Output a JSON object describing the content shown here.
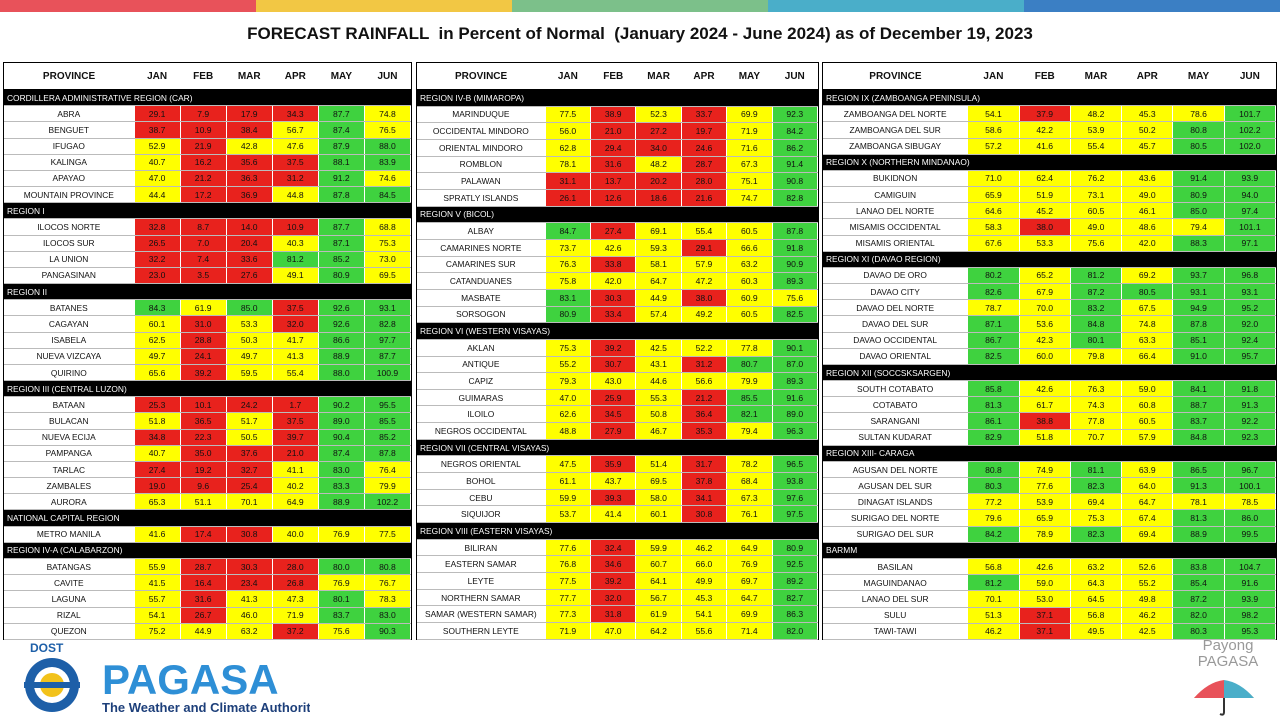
{
  "title": "FORECAST RAINFALL  in Percent of Normal  (January 2024 - June 2024) as of December 19, 2023",
  "tables": [
    {
      "columns": [
        "PROVINCE",
        "JAN",
        "FEB",
        "MAR",
        "APR",
        "MAY",
        "JUN"
      ],
      "groups": [
        {
          "region": "CORDILLERA ADMINISTRATIVE REGION (CAR)",
          "rows": [
            [
              "ABRA",
              "29.1",
              "7.9",
              "17.9",
              "34.3",
              "87.7",
              "74.8"
            ],
            [
              "BENGUET",
              "38.7",
              "10.9",
              "38.4",
              "56.7",
              "87.4",
              "76.5"
            ],
            [
              "IFUGAO",
              "52.9",
              "21.9",
              "42.8",
              "47.6",
              "87.9",
              "88.0"
            ],
            [
              "KALINGA",
              "40.7",
              "16.2",
              "35.6",
              "37.5",
              "88.1",
              "83.9"
            ],
            [
              "APAYAO",
              "47.0",
              "21.2",
              "36.3",
              "31.2",
              "91.2",
              "74.6"
            ],
            [
              "MOUNTAIN PROVINCE",
              "44.4",
              "17.2",
              "36.9",
              "44.8",
              "87.8",
              "84.5"
            ]
          ]
        },
        {
          "region": "REGION I",
          "rows": [
            [
              "ILOCOS NORTE",
              "32.8",
              "8.7",
              "14.0",
              "10.9",
              "87.7",
              "68.8"
            ],
            [
              "ILOCOS SUR",
              "26.5",
              "7.0",
              "20.4",
              "40.3",
              "87.1",
              "75.3"
            ],
            [
              "LA UNION",
              "32.2",
              "7.4",
              "33.6",
              "81.2",
              "85.2",
              "73.0"
            ],
            [
              "PANGASINAN",
              "23.0",
              "3.5",
              "27.6",
              "49.1",
              "80.9",
              "69.5"
            ]
          ]
        },
        {
          "region": "REGION II",
          "rows": [
            [
              "BATANES",
              "84.3",
              "61.9",
              "85.0",
              "37.5",
              "92.6",
              "93.1"
            ],
            [
              "CAGAYAN",
              "60.1",
              "31.0",
              "53.3",
              "32.0",
              "92.6",
              "82.8"
            ],
            [
              "ISABELA",
              "62.5",
              "28.8",
              "50.3",
              "41.7",
              "86.6",
              "97.7"
            ],
            [
              "NUEVA VIZCAYA",
              "49.7",
              "24.1",
              "49.7",
              "41.3",
              "88.9",
              "87.7"
            ],
            [
              "QUIRINO",
              "65.6",
              "39.2",
              "59.5",
              "55.4",
              "88.0",
              "100.9"
            ]
          ]
        },
        {
          "region": "REGION III (CENTRAL LUZON)",
          "rows": [
            [
              "BATAAN",
              "25.3",
              "10.1",
              "24.2",
              "1.7",
              "90.2",
              "95.5"
            ],
            [
              "BULACAN",
              "51.8",
              "36.5",
              "51.7",
              "37.5",
              "89.0",
              "85.5"
            ],
            [
              "NUEVA ECIJA",
              "34.8",
              "22.3",
              "50.5",
              "39.7",
              "90.4",
              "85.2"
            ],
            [
              "PAMPANGA",
              "40.7",
              "35.0",
              "37.6",
              "21.0",
              "87.4",
              "87.8"
            ],
            [
              "TARLAC",
              "27.4",
              "19.2",
              "32.7",
              "41.1",
              "83.0",
              "76.4"
            ],
            [
              "ZAMBALES",
              "19.0",
              "9.6",
              "25.4",
              "40.2",
              "83.3",
              "79.9"
            ],
            [
              "AURORA",
              "65.3",
              "51.1",
              "70.1",
              "64.9",
              "88.9",
              "102.2"
            ]
          ]
        },
        {
          "region": "NATIONAL CAPITAL REGION",
          "rows": [
            [
              "METRO MANILA",
              "41.6",
              "17.4",
              "30.8",
              "40.0",
              "76.9",
              "77.5"
            ]
          ]
        },
        {
          "region": "REGION IV-A (CALABARZON)",
          "rows": [
            [
              "BATANGAS",
              "55.9",
              "28.7",
              "30.3",
              "28.0",
              "80.0",
              "80.8"
            ],
            [
              "CAVITE",
              "41.5",
              "16.4",
              "23.4",
              "26.8",
              "76.9",
              "76.7"
            ],
            [
              "LAGUNA",
              "55.7",
              "31.6",
              "41.3",
              "47.3",
              "80.1",
              "78.3"
            ],
            [
              "RIZAL",
              "54.1",
              "26.7",
              "46.0",
              "71.9",
              "83.7",
              "83.0"
            ],
            [
              "QUEZON",
              "75.2",
              "44.9",
              "63.2",
              "37.2",
              "75.6",
              "90.3"
            ]
          ]
        }
      ]
    },
    {
      "columns": [
        "PROVINCE",
        "JAN",
        "FEB",
        "MAR",
        "APR",
        "MAY",
        "JUN"
      ],
      "groups": [
        {
          "region": "REGION IV-B (MIMAROPA)",
          "rows": [
            [
              "MARINDUQUE",
              "77.5",
              "38.9",
              "52.3",
              "33.7",
              "69.9",
              "92.3"
            ],
            [
              "OCCIDENTAL MINDORO",
              "56.0",
              "21.0",
              "27.2",
              "19.7",
              "71.9",
              "84.2"
            ],
            [
              "ORIENTAL MINDORO",
              "62.8",
              "29.4",
              "34.0",
              "24.6",
              "71.6",
              "86.2"
            ],
            [
              "ROMBLON",
              "78.1",
              "31.6",
              "48.2",
              "28.7",
              "67.3",
              "91.4"
            ],
            [
              "PALAWAN",
              "31.1",
              "13.7",
              "20.2",
              "28.0",
              "75.1",
              "90.8"
            ],
            [
              "SPRATLY ISLANDS",
              "26.1",
              "12.6",
              "18.6",
              "21.6",
              "74.7",
              "82.8"
            ]
          ]
        },
        {
          "region": "REGION V (BICOL)",
          "rows": [
            [
              "ALBAY",
              "84.7",
              "27.4",
              "69.1",
              "55.4",
              "60.5",
              "87.8"
            ],
            [
              "CAMARINES NORTE",
              "73.7",
              "42.6",
              "59.3",
              "29.1",
              "66.6",
              "91.8"
            ],
            [
              "CAMARINES SUR",
              "76.3",
              "33.8",
              "58.1",
              "57.9",
              "63.2",
              "90.9"
            ],
            [
              "CATANDUANES",
              "75.8",
              "42.0",
              "64.7",
              "47.2",
              "60.3",
              "89.3"
            ],
            [
              "MASBATE",
              "83.1",
              "30.3",
              "44.9",
              "38.0",
              "60.9",
              "75.6"
            ],
            [
              "SORSOGON",
              "80.9",
              "33.4",
              "57.4",
              "49.2",
              "60.5",
              "82.5"
            ]
          ]
        },
        {
          "region": "REGION VI (WESTERN VISAYAS)",
          "rows": [
            [
              "AKLAN",
              "75.3",
              "39.2",
              "42.5",
              "52.2",
              "77.8",
              "90.1"
            ],
            [
              "ANTIQUE",
              "55.2",
              "30.7",
              "43.1",
              "31.2",
              "80.7",
              "87.0"
            ],
            [
              "CAPIZ",
              "79.3",
              "43.0",
              "44.6",
              "56.6",
              "79.9",
              "89.3"
            ],
            [
              "GUIMARAS",
              "47.0",
              "25.9",
              "55.3",
              "21.2",
              "85.5",
              "91.6"
            ],
            [
              "ILOILO",
              "62.6",
              "34.5",
              "50.8",
              "36.4",
              "82.1",
              "89.0"
            ],
            [
              "NEGROS OCCIDENTAL",
              "48.8",
              "27.9",
              "46.7",
              "35.3",
              "79.4",
              "96.3"
            ]
          ]
        },
        {
          "region": "REGION VII (CENTRAL VISAYAS)",
          "rows": [
            [
              "NEGROS ORIENTAL",
              "47.5",
              "35.9",
              "51.4",
              "31.7",
              "78.2",
              "96.5"
            ],
            [
              "BOHOL",
              "61.1",
              "43.7",
              "69.5",
              "37.8",
              "68.4",
              "93.8"
            ],
            [
              "CEBU",
              "59.9",
              "39.3",
              "58.0",
              "34.1",
              "67.3",
              "97.6"
            ],
            [
              "SIQUIJOR",
              "53.7",
              "41.4",
              "60.1",
              "30.8",
              "76.1",
              "97.5"
            ]
          ]
        },
        {
          "region": "REGION VIII (EASTERN  VISAYAS)",
          "rows": [
            [
              "BILIRAN",
              "77.6",
              "32.4",
              "59.9",
              "46.2",
              "64.9",
              "80.9"
            ],
            [
              "EASTERN SAMAR",
              "76.8",
              "34.6",
              "60.7",
              "66.0",
              "76.9",
              "92.5"
            ],
            [
              "LEYTE",
              "77.5",
              "39.2",
              "64.1",
              "49.9",
              "69.7",
              "89.2"
            ],
            [
              "NORTHERN SAMAR",
              "77.7",
              "32.0",
              "56.7",
              "45.3",
              "64.7",
              "82.7"
            ],
            [
              "SAMAR (WESTERN SAMAR)",
              "77.3",
              "31.8",
              "61.9",
              "54.1",
              "69.9",
              "86.3"
            ],
            [
              "SOUTHERN LEYTE",
              "71.9",
              "47.0",
              "64.2",
              "55.6",
              "71.4",
              "82.0"
            ]
          ]
        }
      ]
    },
    {
      "columns": [
        "PROVINCE",
        "JAN",
        "FEB",
        "MAR",
        "APR",
        "MAY",
        "JUN"
      ],
      "groups": [
        {
          "region": "REGION IX (ZAMBOANGA PENINSULA)",
          "rows": [
            [
              "ZAMBOANGA DEL NORTE",
              "54.1",
              "37.9",
              "48.2",
              "45.3",
              "78.6",
              "101.7"
            ],
            [
              "ZAMBOANGA DEL SUR",
              "58.6",
              "42.2",
              "53.9",
              "50.2",
              "80.8",
              "102.2"
            ],
            [
              "ZAMBOANGA SIBUGAY",
              "57.2",
              "41.6",
              "55.4",
              "45.7",
              "80.5",
              "102.0"
            ]
          ]
        },
        {
          "region": "REGION X (NORTHERN MINDANAO)",
          "rows": [
            [
              "BUKIDNON",
              "71.0",
              "62.4",
              "76.2",
              "43.6",
              "91.4",
              "93.9"
            ],
            [
              "CAMIGUIN",
              "65.9",
              "51.9",
              "73.1",
              "49.0",
              "80.9",
              "94.0"
            ],
            [
              "LANAO DEL NORTE",
              "64.6",
              "45.2",
              "60.5",
              "46.1",
              "85.0",
              "97.4"
            ],
            [
              "MISAMIS OCCIDENTAL",
              "58.3",
              "38.0",
              "49.0",
              "48.6",
              "79.4",
              "101.1"
            ],
            [
              "MISAMIS ORIENTAL",
              "67.6",
              "53.3",
              "75.6",
              "42.0",
              "88.3",
              "97.1"
            ]
          ]
        },
        {
          "region": "REGION XI (DAVAO REGION)",
          "rows": [
            [
              "DAVAO DE ORO",
              "80.2",
              "65.2",
              "81.2",
              "69.2",
              "93.7",
              "96.8"
            ],
            [
              "DAVAO CITY",
              "82.6",
              "67.9",
              "87.2",
              "80.5",
              "93.1",
              "93.1"
            ],
            [
              "DAVAO DEL NORTE",
              "78.7",
              "70.0",
              "83.2",
              "67.5",
              "94.9",
              "95.2"
            ],
            [
              "DAVAO DEL SUR",
              "87.1",
              "53.6",
              "84.8",
              "74.8",
              "87.8",
              "92.0"
            ],
            [
              "DAVAO OCCIDENTAL",
              "86.7",
              "42.3",
              "80.1",
              "63.3",
              "85.1",
              "92.4"
            ],
            [
              "DAVAO ORIENTAL",
              "82.5",
              "60.0",
              "79.8",
              "66.4",
              "91.0",
              "95.7"
            ]
          ]
        },
        {
          "region": "REGION XII (SOCCSKSARGEN)",
          "rows": [
            [
              "SOUTH COTABATO",
              "85.8",
              "42.6",
              "76.3",
              "59.0",
              "84.1",
              "91.8"
            ],
            [
              "COTABATO",
              "81.3",
              "61.7",
              "74.3",
              "60.8",
              "88.7",
              "91.3"
            ],
            [
              "SARANGANI",
              "86.1",
              "38.8",
              "77.8",
              "60.5",
              "83.7",
              "92.2"
            ],
            [
              "SULTAN KUDARAT",
              "82.9",
              "51.8",
              "70.7",
              "57.9",
              "84.8",
              "92.3"
            ]
          ]
        },
        {
          "region": "REGION XIII- CARAGA",
          "rows": [
            [
              "AGUSAN DEL NORTE",
              "80.8",
              "74.9",
              "81.1",
              "63.9",
              "86.5",
              "96.7"
            ],
            [
              "AGUSAN DEL SUR",
              "80.3",
              "77.6",
              "82.3",
              "64.0",
              "91.3",
              "100.1"
            ],
            [
              "DINAGAT ISLANDS",
              "77.2",
              "53.9",
              "69.4",
              "64.7",
              "78.1",
              "78.5"
            ],
            [
              "SURIGAO DEL NORTE",
              "79.6",
              "65.9",
              "75.3",
              "67.4",
              "81.3",
              "86.0"
            ],
            [
              "SURIGAO DEL SUR",
              "84.2",
              "78.9",
              "82.3",
              "69.4",
              "88.9",
              "99.5"
            ]
          ]
        },
        {
          "region": "BARMM",
          "rows": [
            [
              "BASILAN",
              "56.8",
              "42.6",
              "63.2",
              "52.6",
              "83.8",
              "104.7"
            ],
            [
              "MAGUINDANAO",
              "81.2",
              "59.0",
              "64.3",
              "55.2",
              "85.4",
              "91.6"
            ],
            [
              "LANAO DEL SUR",
              "70.1",
              "53.0",
              "64.5",
              "49.8",
              "87.2",
              "93.9"
            ],
            [
              "SULU",
              "51.3",
              "37.1",
              "56.8",
              "46.2",
              "82.0",
              "98.2"
            ],
            [
              "TAWI-TAWI",
              "46.2",
              "37.1",
              "49.5",
              "42.5",
              "80.3",
              "95.3"
            ]
          ]
        }
      ]
    }
  ],
  "logo": {
    "agency": "DOST",
    "name": "PAGASA",
    "tagline": "The Weather and Climate Authority"
  },
  "advisory": {
    "line1": "Payong",
    "line2": "PAGASA"
  }
}
